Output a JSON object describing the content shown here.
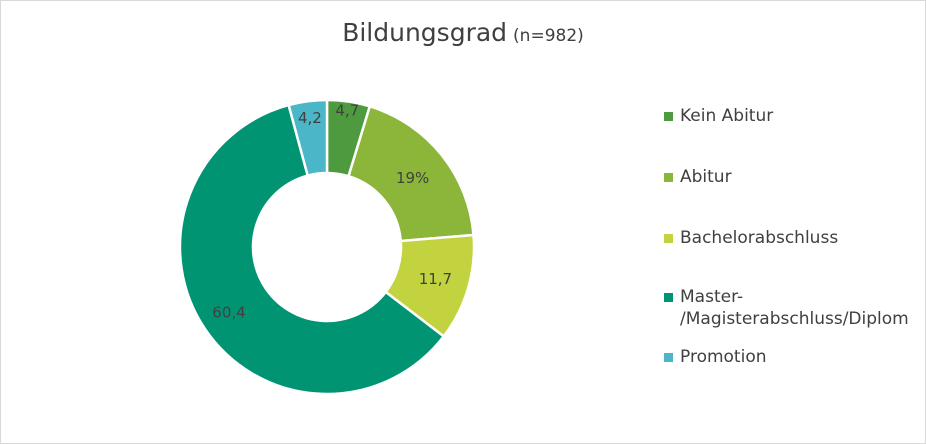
{
  "chart_data": {
    "type": "pie",
    "variant": "donut",
    "title": "Bildungsgrad",
    "subtitle": "(n=982)",
    "legend_position": "right",
    "slices": [
      {
        "name": "Kein Abitur",
        "value": 4.7,
        "label": "4,7",
        "color": "#4e9a3e"
      },
      {
        "name": "Abitur",
        "value": 19,
        "label": "19%",
        "color": "#8cb63a"
      },
      {
        "name": "Bachelorabschluss",
        "value": 11.7,
        "label": "11,7",
        "color": "#c2d33f"
      },
      {
        "name": "Master-\n/Magisterabschluss/Diplom",
        "value": 60.4,
        "label": "60,4",
        "color": "#009473"
      },
      {
        "name": "Promotion",
        "value": 4.2,
        "label": "4,2",
        "color": "#4bb6c8"
      }
    ]
  }
}
